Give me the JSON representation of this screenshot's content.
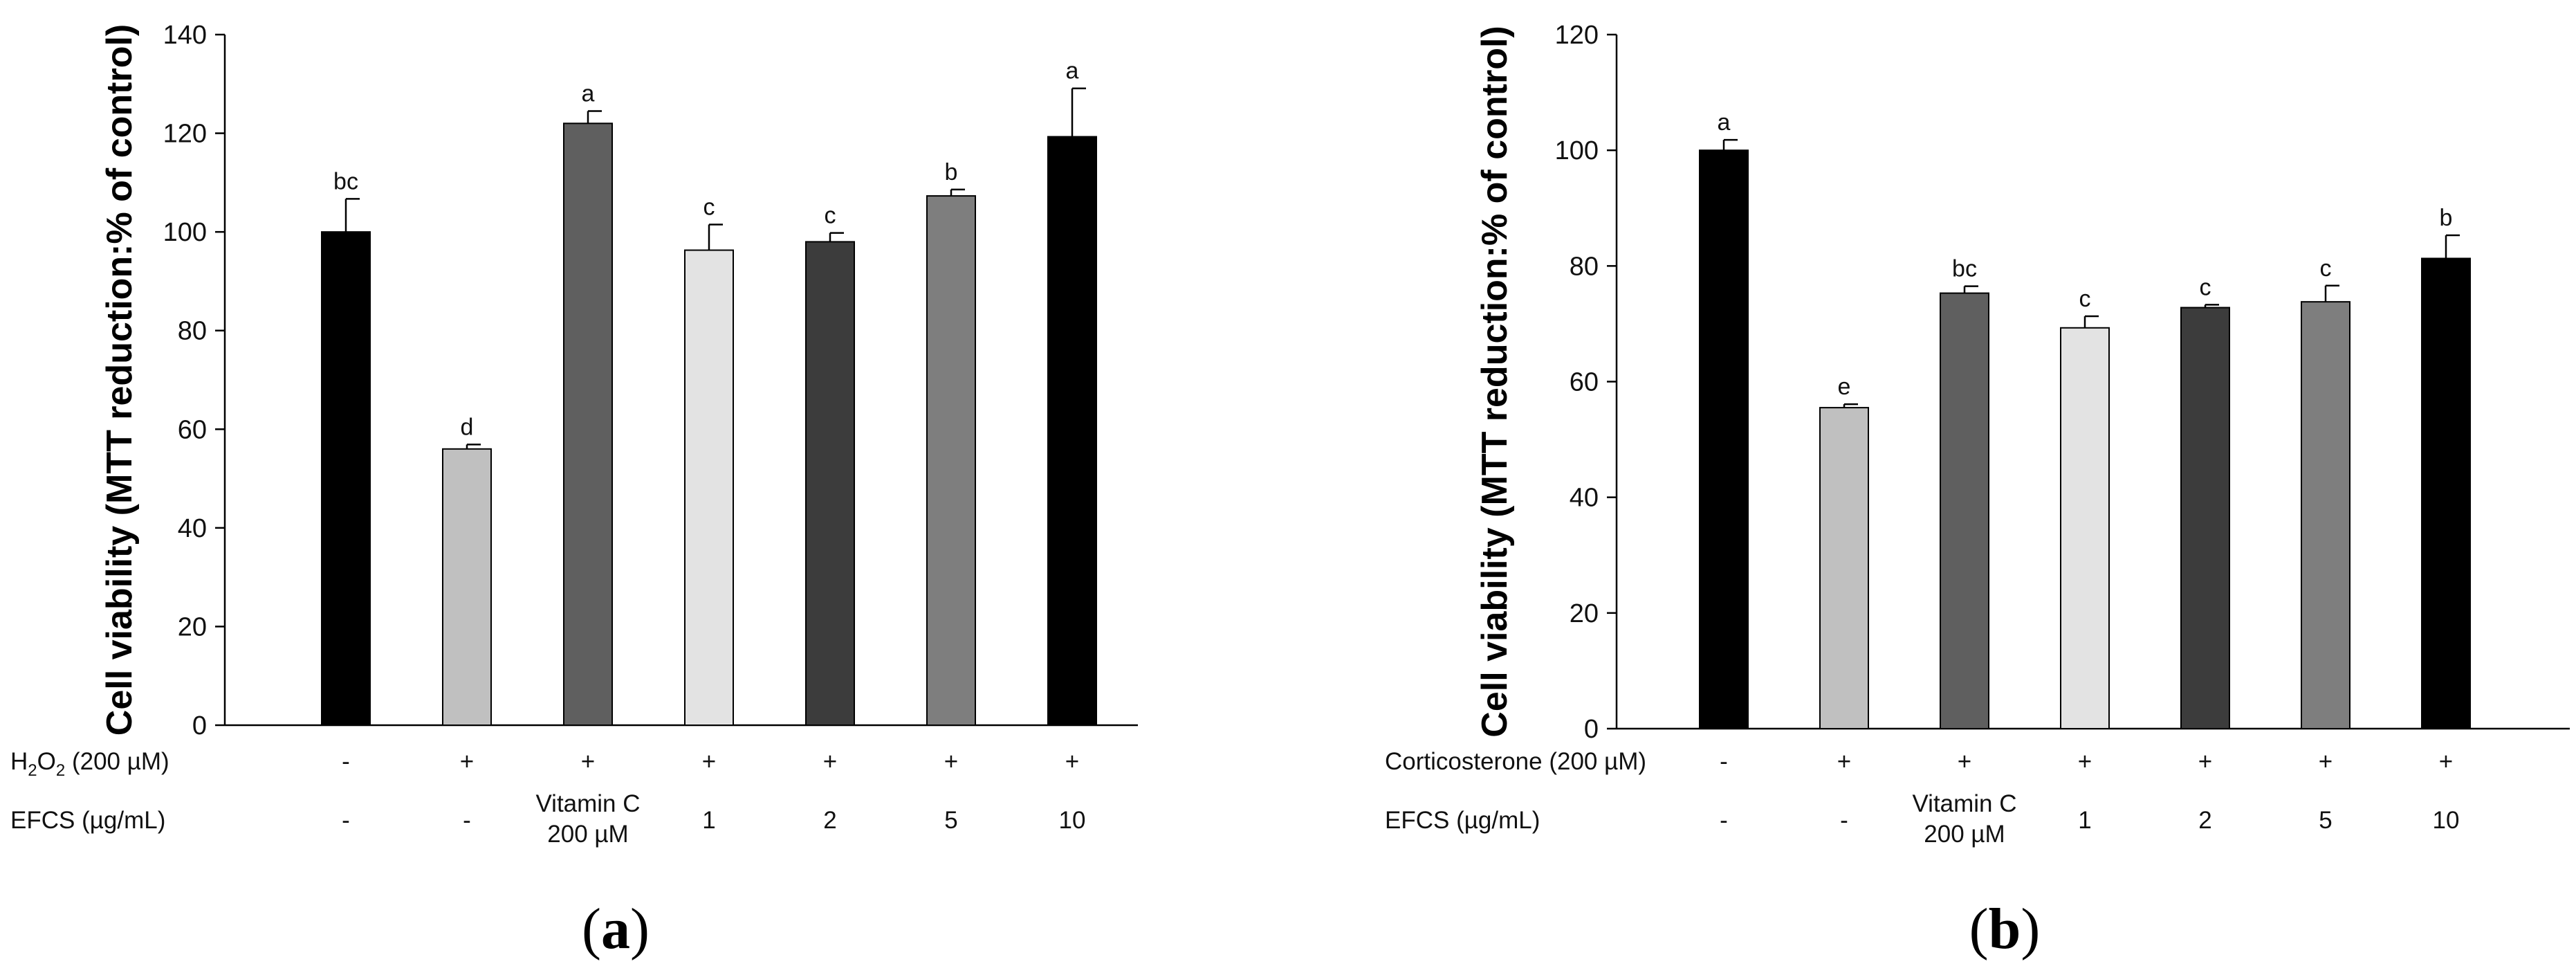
{
  "chart_data": [
    {
      "type": "bar",
      "panel_label_open": "(",
      "panel_letter": "a",
      "panel_label_close": ")",
      "ylabel": "Cell viability (MTT reduction:% of control)",
      "ylim": [
        0,
        140
      ],
      "yticks": [
        0,
        20,
        40,
        60,
        80,
        100,
        120,
        140
      ],
      "treatment_label": {
        "text": "H",
        "sub": "2",
        "text2": "O",
        "sub2": "2",
        "text3": " (200 µM)"
      },
      "efcs_label": "EFCS (µg/mL)",
      "categories": [
        {
          "treatment": "-",
          "efcs": [
            "-"
          ]
        },
        {
          "treatment": "+",
          "efcs": [
            "-"
          ]
        },
        {
          "treatment": "+",
          "efcs": [
            "Vitamin C",
            "200 µM"
          ]
        },
        {
          "treatment": "+",
          "efcs": [
            "1"
          ]
        },
        {
          "treatment": "+",
          "efcs": [
            "2"
          ]
        },
        {
          "treatment": "+",
          "efcs": [
            "5"
          ]
        },
        {
          "treatment": "+",
          "efcs": [
            "10"
          ]
        }
      ],
      "values": [
        100,
        56,
        122,
        96.3,
        98,
        107.3,
        119.3
      ],
      "errors": [
        6.7,
        0.9,
        2.5,
        5.2,
        1.8,
        1.3,
        9.8
      ],
      "significance": [
        "bc",
        "d",
        "a",
        "c",
        "c",
        "b",
        "a"
      ],
      "colors": [
        "#000000",
        "#c0c0c0",
        "#5f5f5f",
        "#e3e3e3",
        "#3c3c3c",
        "#7e7e7e",
        "#000000"
      ]
    },
    {
      "type": "bar",
      "panel_label_open": "(",
      "panel_letter": "b",
      "panel_label_close": ")",
      "ylabel": "Cell viability (MTT reduction:% of control)",
      "ylim": [
        0,
        120
      ],
      "yticks": [
        0,
        20,
        40,
        60,
        80,
        100,
        120
      ],
      "treatment_label": {
        "text": "Corticosterone (200 µM)"
      },
      "efcs_label": "EFCS (µg/mL)",
      "categories": [
        {
          "treatment": "-",
          "efcs": [
            "-"
          ]
        },
        {
          "treatment": "+",
          "efcs": [
            "-"
          ]
        },
        {
          "treatment": "+",
          "efcs": [
            "Vitamin C",
            "200 µM"
          ]
        },
        {
          "treatment": "+",
          "efcs": [
            "1"
          ]
        },
        {
          "treatment": "+",
          "efcs": [
            "2"
          ]
        },
        {
          "treatment": "+",
          "efcs": [
            "5"
          ]
        },
        {
          "treatment": "+",
          "efcs": [
            "10"
          ]
        }
      ],
      "values": [
        100,
        55.5,
        75.3,
        69.3,
        72.8,
        73.8,
        81.3
      ],
      "errors": [
        1.8,
        0.6,
        1.2,
        2.0,
        0.5,
        2.8,
        4.0
      ],
      "significance": [
        "a",
        "e",
        "bc",
        "c",
        "c",
        "c",
        "b"
      ],
      "colors": [
        "#000000",
        "#c0c0c0",
        "#5f5f5f",
        "#e3e3e3",
        "#3c3c3c",
        "#7e7e7e",
        "#000000"
      ]
    }
  ]
}
